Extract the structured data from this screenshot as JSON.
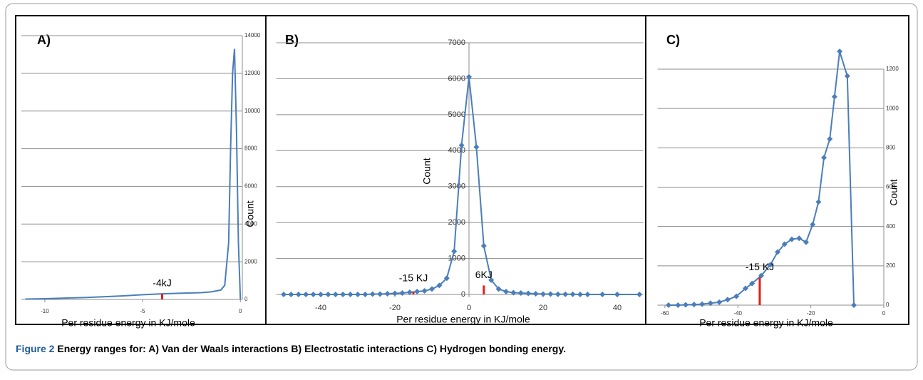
{
  "chart_data": [
    {
      "type": "line",
      "title": "A)",
      "xlabel": "Per residue energy in KJ/mole",
      "ylabel": "Count",
      "x": [
        -11,
        -10,
        -9,
        -8,
        -7,
        -6,
        -5,
        -4,
        -3,
        -2,
        -1.5,
        -1,
        -0.8,
        -0.6,
        -0.5,
        -0.4,
        -0.3,
        -0.2,
        -0.1,
        0
      ],
      "values": [
        20,
        40,
        70,
        100,
        140,
        190,
        250,
        300,
        330,
        360,
        400,
        500,
        750,
        3000,
        8000,
        12000,
        13300,
        9000,
        3000,
        0
      ],
      "color": "#4a7ebb",
      "markers": false,
      "grid": true,
      "y_axis_at": "right",
      "xlim": [
        -11.2,
        0.1
      ],
      "xticks": [
        -10,
        -5,
        0
      ],
      "ylim": [
        0,
        14000
      ],
      "yticks": [
        0,
        2000,
        4000,
        6000,
        8000,
        10000,
        12000,
        14000
      ],
      "annotations": [
        {
          "text": "-4kJ",
          "x": -4,
          "y": 300
        }
      ]
    },
    {
      "type": "line",
      "title": "B)",
      "xlabel": "Per residue energy in KJ/mole",
      "ylabel": "Count",
      "x": [
        -50,
        -48,
        -46,
        -44,
        -42,
        -40,
        -38,
        -36,
        -34,
        -32,
        -30,
        -28,
        -26,
        -24,
        -22,
        -20,
        -18,
        -16,
        -14,
        -12,
        -10,
        -8,
        -6,
        -4,
        -2,
        0,
        2,
        4,
        6,
        8,
        10,
        12,
        14,
        16,
        18,
        20,
        22,
        24,
        26,
        28,
        30,
        32,
        36,
        40,
        46
      ],
      "values": [
        0,
        0,
        0,
        0,
        0,
        0,
        0,
        0,
        0,
        0,
        0,
        0,
        10,
        10,
        20,
        30,
        40,
        60,
        80,
        100,
        150,
        250,
        450,
        1200,
        4150,
        6050,
        4100,
        1350,
        400,
        150,
        80,
        50,
        40,
        30,
        20,
        10,
        10,
        5,
        5,
        5,
        0,
        0,
        0,
        0,
        0
      ],
      "color": "#4a7ebb",
      "markers": true,
      "grid": true,
      "y_axis_at": "zero",
      "xlim": [
        -52,
        47
      ],
      "xticks": [
        -40,
        -20,
        0,
        20,
        40
      ],
      "ylim": [
        0,
        7000
      ],
      "yticks": [
        0,
        1000,
        2000,
        3000,
        4000,
        5000,
        6000,
        7000
      ],
      "annotations": [
        {
          "text": "-15 KJ",
          "x": -15,
          "y": 70
        },
        {
          "text": "6KJ",
          "x": 4,
          "y": 250
        }
      ]
    },
    {
      "type": "line",
      "title": "C)",
      "xlabel": "Per residue energy in KJ/mole",
      "ylabel": "Count",
      "x": [
        -59,
        -56.4,
        -54.3,
        -52,
        -49.8,
        -47.5,
        -45.1,
        -42.8,
        -40.4,
        -37.9,
        -36.1,
        -33.6,
        -31.1,
        -29.1,
        -27.2,
        -25.2,
        -23.2,
        -21.3,
        -19.5,
        -17.9,
        -16.4,
        -14.8,
        -13.5,
        -12.1,
        -10,
        -8.2
      ],
      "values": [
        0,
        0,
        2,
        3,
        5,
        10,
        15,
        28,
        45,
        85,
        110,
        150,
        205,
        270,
        310,
        335,
        340,
        320,
        410,
        525,
        750,
        845,
        1060,
        1290,
        1165,
        0
      ],
      "color": "#4a7ebb",
      "markers": true,
      "grid": true,
      "y_axis_at": "right",
      "xlim": [
        -62,
        0
      ],
      "xticks": [
        -60,
        -40,
        -20,
        0
      ],
      "ylim": [
        0,
        1200
      ],
      "yticks": [
        0,
        200,
        400,
        600,
        800,
        1000,
        1200
      ],
      "annotations": [
        {
          "text": "-15 KJ",
          "x": -34,
          "y": 140
        }
      ]
    }
  ],
  "caption": {
    "label": "Figure 2",
    "text": "Energy ranges for: A) Van der Waals interactions B) Electrostatic interactions C) Hydrogen bonding energy."
  }
}
